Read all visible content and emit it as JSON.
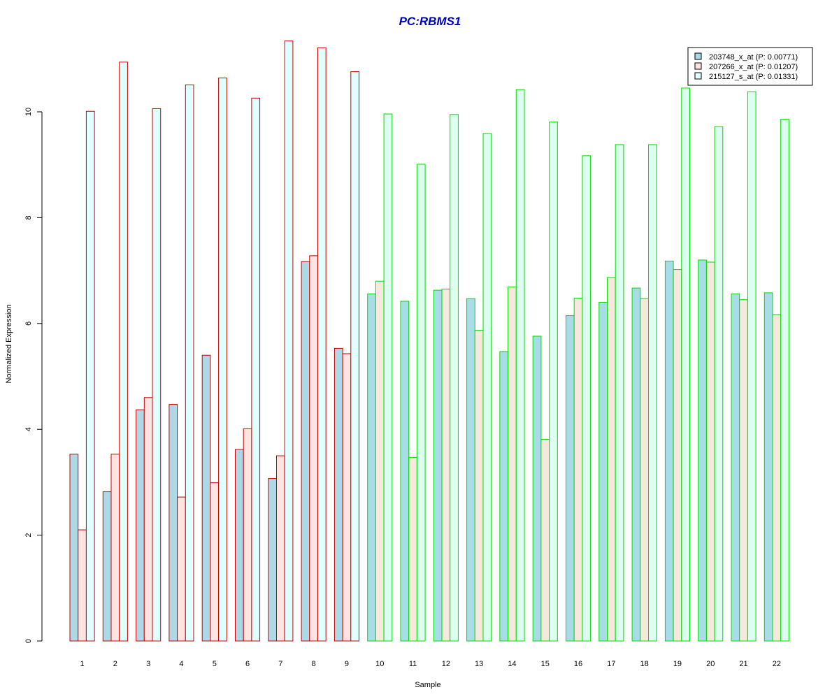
{
  "chart_data": {
    "type": "bar",
    "title": "PC:RBMS1",
    "title_color": "#0000CC",
    "xlabel": "Sample",
    "ylabel": "Normalized Expression",
    "ylim": [
      0,
      11.4
    ],
    "yticks": [
      0,
      2,
      4,
      6,
      8,
      10
    ],
    "grid": false,
    "legend_position": "top-right",
    "categories": [
      "1",
      "2",
      "3",
      "4",
      "5",
      "6",
      "7",
      "8",
      "9",
      "10",
      "11",
      "12",
      "13",
      "14",
      "15",
      "16",
      "17",
      "18",
      "19",
      "20",
      "21",
      "22"
    ],
    "group_border_colors": [
      "#CC0000",
      "#CC0000",
      "#CC0000",
      "#CC0000",
      "#CC0000",
      "#CC0000",
      "#CC0000",
      "#CC0000",
      "#CC0000",
      "#00DD00",
      "#00DD00",
      "#00DD00",
      "#00DD00",
      "#00DD00",
      "#00DD00",
      "#00DD00",
      "#00DD00",
      "#00DD00",
      "#00DD00",
      "#00DD00",
      "#00DD00",
      "#00DD00"
    ],
    "series": [
      {
        "name": "203748_x_at (P: 0.00771)",
        "fill_group1": "#ADD8E6",
        "fill_group2": "#A8DCE6",
        "legend_fill": "#ADD8E6",
        "values": [
          3.53,
          2.82,
          4.37,
          4.47,
          5.4,
          3.62,
          3.07,
          7.17,
          5.53,
          6.56,
          6.42,
          6.63,
          6.47,
          5.47,
          5.76,
          6.15,
          6.4,
          6.67,
          7.18,
          7.2,
          6.56,
          6.58
        ]
      },
      {
        "name": "207266_x_at (P: 0.01207)",
        "fill_group1": "#FFE4E1",
        "fill_group2": "#F5E8DC",
        "legend_fill": "#FFE4E1",
        "values": [
          2.1,
          3.53,
          4.6,
          2.72,
          2.99,
          4.01,
          3.5,
          7.28,
          5.43,
          6.8,
          3.47,
          6.65,
          5.87,
          6.69,
          3.81,
          6.48,
          6.87,
          6.47,
          7.02,
          7.16,
          6.45,
          6.17
        ]
      },
      {
        "name": "215127_s_at (P: 0.01331)",
        "fill_group1": "#E0FFFF",
        "fill_group2": "#DDFFF0",
        "legend_fill": "#E0FFFF",
        "values": [
          10.01,
          10.94,
          10.06,
          10.51,
          10.64,
          10.26,
          11.34,
          11.21,
          10.76,
          9.96,
          9.01,
          9.95,
          9.59,
          10.42,
          9.81,
          9.17,
          9.38,
          9.38,
          10.45,
          9.72,
          10.38,
          9.86
        ]
      }
    ]
  }
}
